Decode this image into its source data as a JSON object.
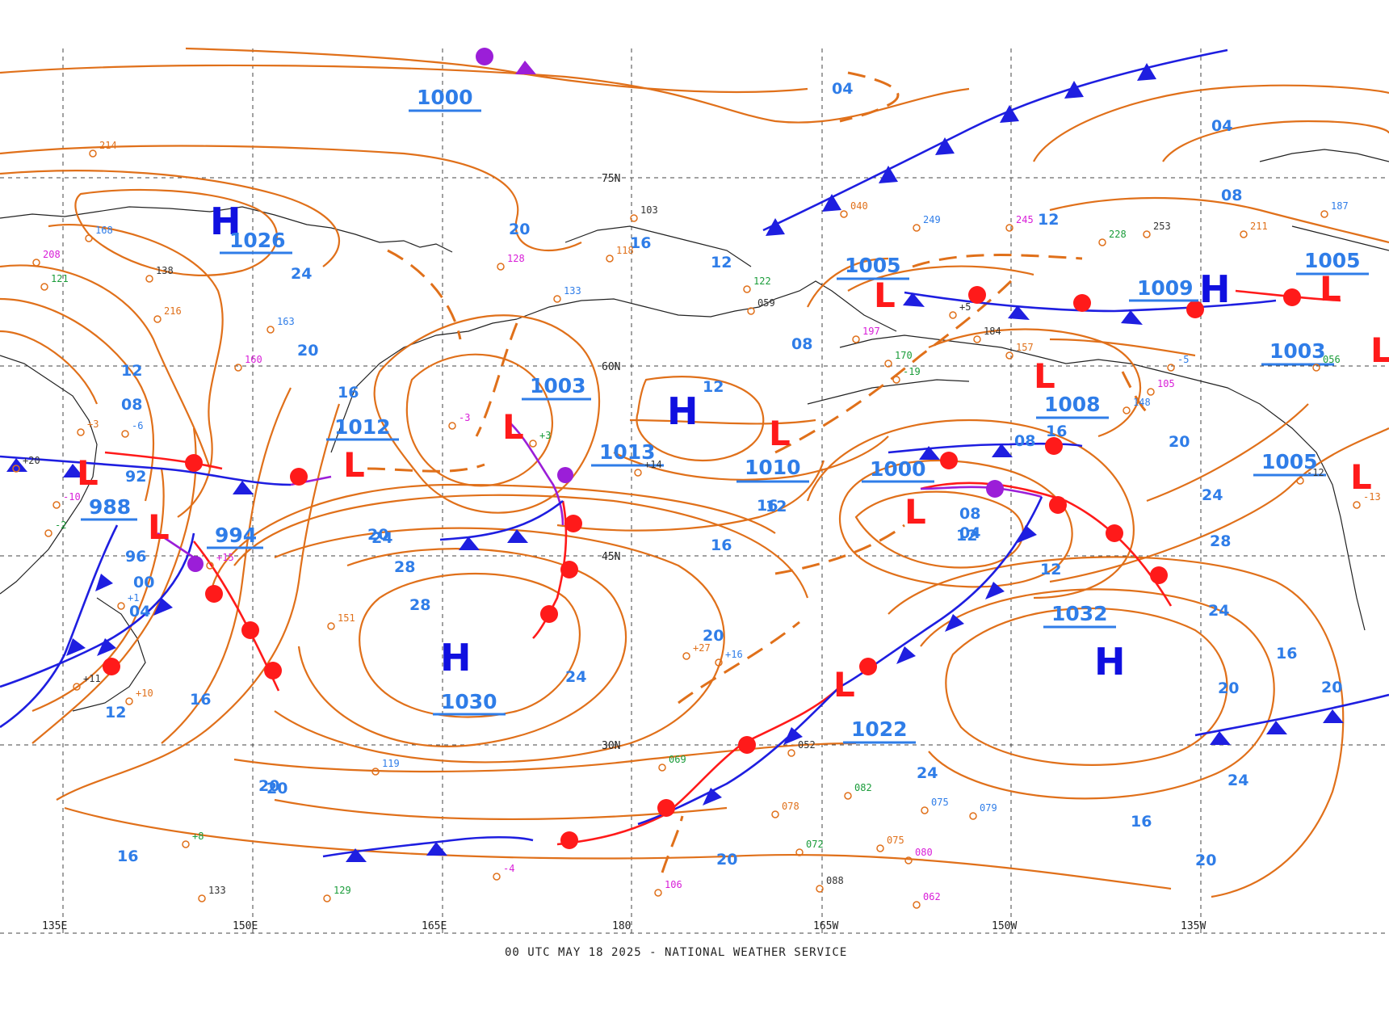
{
  "footer": "00 UTC MAY 18 2025 - NATIONAL WEATHER SERVICE",
  "colors": {
    "isobar": "#e0701a",
    "isobar_label": "#2f7de8",
    "high": "#1010e0",
    "low": "#ff1a1a",
    "cold_front": "#1e1ee0",
    "warm_front": "#ff1a1a",
    "occluded_front": "#9b1ed8",
    "grid": "#444444"
  },
  "grid": {
    "lat_labels": [
      "75N",
      "60N",
      "45N",
      "30N"
    ],
    "lon_labels": [
      "135E",
      "150E",
      "165E",
      "180",
      "165W",
      "150W",
      "135W"
    ]
  },
  "pressure_centers": {
    "highs": [
      {
        "symbol": "H",
        "value": "1026"
      },
      {
        "symbol": "H",
        "value": "1030"
      },
      {
        "symbol": "H",
        "value": ""
      },
      {
        "symbol": "H",
        "value": "1032"
      },
      {
        "symbol": "H",
        "value": "1009"
      }
    ],
    "lows": [
      {
        "symbol": "L",
        "value": "988"
      },
      {
        "symbol": "L",
        "value": "994"
      },
      {
        "symbol": "L",
        "value": "1012"
      },
      {
        "symbol": "L",
        "value": "1003"
      },
      {
        "symbol": "L",
        "value": "1010"
      },
      {
        "symbol": "L",
        "value": "1000"
      },
      {
        "symbol": "L",
        "value": "1005"
      },
      {
        "symbol": "L",
        "value": "1008"
      },
      {
        "symbol": "L",
        "value": "1022"
      },
      {
        "symbol": "L",
        "value": "1005"
      },
      {
        "symbol": "L",
        "value": "1003"
      },
      {
        "symbol": "L",
        "value": "1005"
      }
    ],
    "other_values": [
      "1000",
      "1013"
    ]
  },
  "isobar_labels": [
    "04",
    "20",
    "24",
    "20",
    "16",
    "12",
    "08",
    "16",
    "12",
    "08",
    "12",
    "04",
    "08",
    "12",
    "16",
    "20",
    "24",
    "28",
    "28",
    "24",
    "20",
    "16",
    "12",
    "08",
    "04",
    "16",
    "20",
    "24",
    "28",
    "24",
    "20",
    "16",
    "20",
    "24",
    "20",
    "16",
    "12",
    "08",
    "12",
    "92",
    "96",
    "00",
    "04",
    "12",
    "16",
    "20",
    "20",
    "24",
    "16",
    "20"
  ],
  "stations": [
    "214",
    "168",
    "208",
    "121",
    "138",
    "216",
    "163",
    "160",
    "129",
    "133",
    "151",
    "119",
    "106",
    "072",
    "088",
    "075",
    "079",
    "062",
    "069",
    "052",
    "078",
    "075",
    "080",
    "082",
    "103",
    "118",
    "133",
    "128",
    "122",
    "059",
    "040",
    "249",
    "245",
    "228",
    "253",
    "211",
    "187",
    "197",
    "170",
    "184",
    "157",
    "148",
    "105",
    "056",
    "-12",
    "-13",
    "-5",
    "-3",
    "+3",
    "+14",
    "+27",
    "+16",
    "+15",
    "+8",
    "+11",
    "+10",
    "+1",
    "-10",
    "-2",
    "+20",
    "+3",
    "-6",
    "-4",
    "-19",
    "+5"
  ]
}
